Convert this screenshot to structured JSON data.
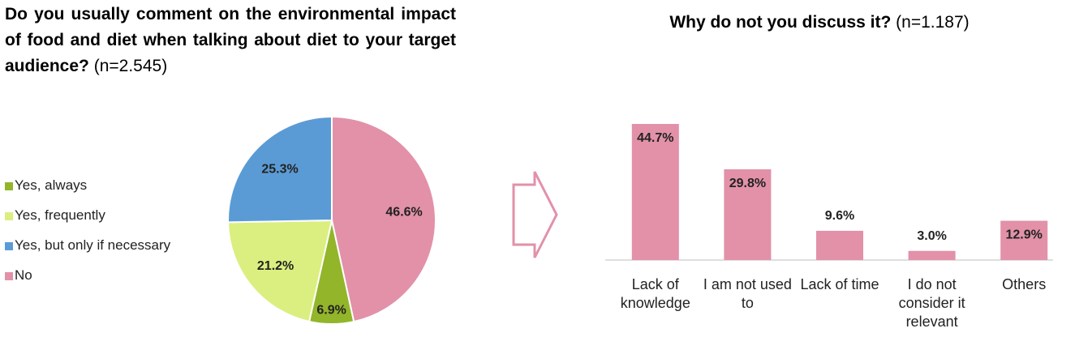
{
  "chart_data": [
    {
      "type": "pie",
      "title": "Do you usually comment on the environmental impact of food and diet when talking about diet to your target audience?",
      "title_note": "(n=2.545)",
      "categories": [
        "Yes, always",
        "Yes, frequently",
        "Yes, but only if necessary",
        "No"
      ],
      "values": [
        6.9,
        21.2,
        25.3,
        46.6
      ],
      "value_labels": [
        "6.9%",
        "21.2%",
        "25.3%",
        "46.6%"
      ],
      "colors": [
        "#92b52a",
        "#daef7f",
        "#5b9bd5",
        "#e291a9"
      ],
      "legend": "left"
    },
    {
      "type": "bar",
      "title": "Why do not you discuss it?",
      "title_note": "(n=1.187)",
      "categories": [
        "Lack of knowledge",
        "I am not used to",
        "Lack of time",
        "I do not consider it relevant",
        "Others"
      ],
      "values": [
        44.7,
        29.8,
        9.6,
        3.0,
        12.9
      ],
      "value_labels": [
        "44.7%",
        "29.8%",
        "9.6%",
        "3.0%",
        "12.9%"
      ],
      "color": "#e291a9"
    }
  ]
}
